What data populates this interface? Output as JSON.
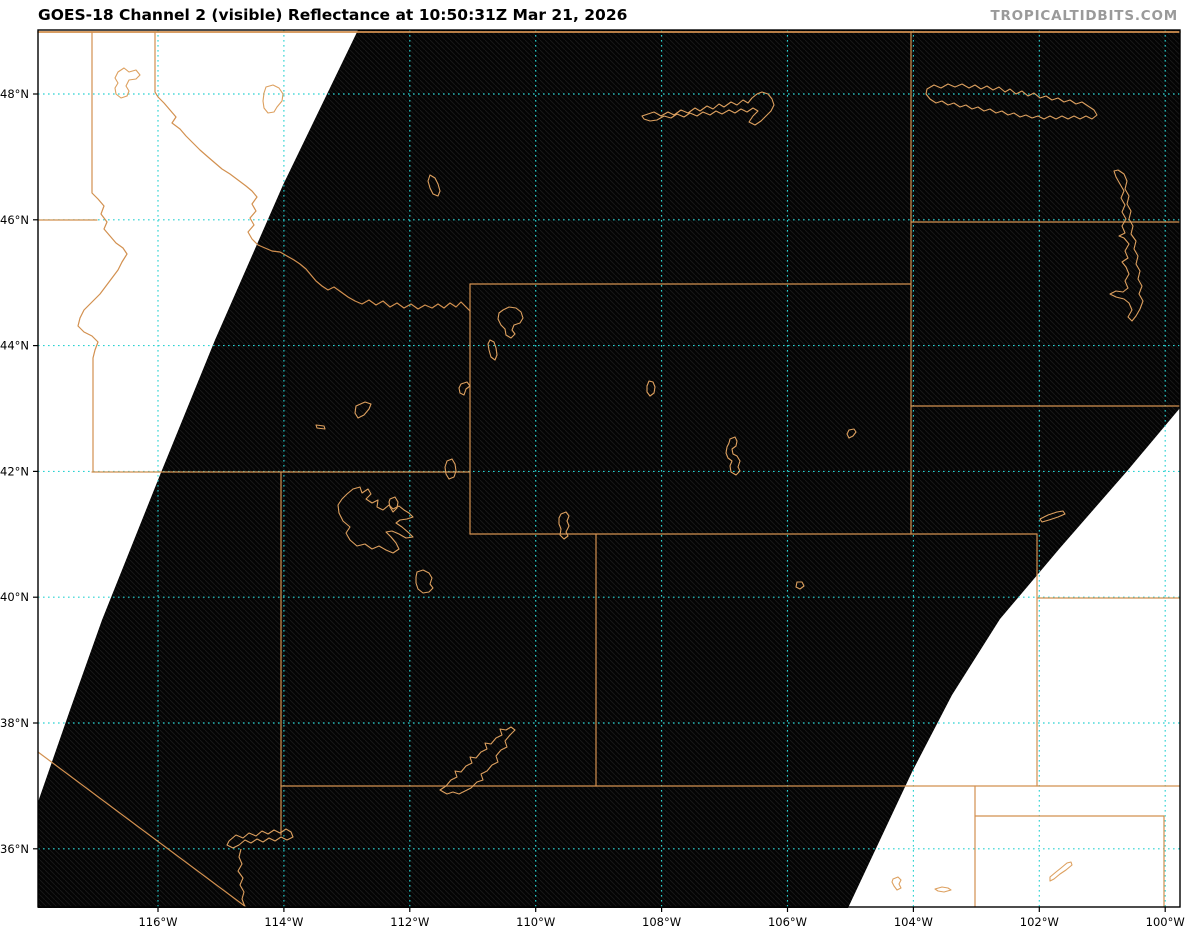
{
  "header": {
    "title": "GOES-18 Channel 2 (visible) Reflectance at 10:50:31Z Mar 21, 2026",
    "watermark": "TROPICALTIDBITS.COM"
  },
  "axes": {
    "x_ticks": [
      {
        "label": "116°W",
        "lon": 116
      },
      {
        "label": "114°W",
        "lon": 114
      },
      {
        "label": "112°W",
        "lon": 112
      },
      {
        "label": "110°W",
        "lon": 110
      },
      {
        "label": "108°W",
        "lon": 108
      },
      {
        "label": "106°W",
        "lon": 106
      },
      {
        "label": "104°W",
        "lon": 104
      },
      {
        "label": "102°W",
        "lon": 102
      },
      {
        "label": "100°W",
        "lon": 100
      }
    ],
    "y_ticks": [
      {
        "label": "48°N",
        "lat": 48
      },
      {
        "label": "46°N",
        "lat": 46
      },
      {
        "label": "44°N",
        "lat": 44
      },
      {
        "label": "42°N",
        "lat": 42
      },
      {
        "label": "40°N",
        "lat": 40
      },
      {
        "label": "38°N",
        "lat": 38
      },
      {
        "label": "36°N",
        "lat": 36
      }
    ]
  },
  "colors": {
    "background": "#ffffff",
    "swath_fill": "#040404",
    "swath_stripe": "#181818",
    "gridline": "#2ad2d2",
    "state_border": "#d2904f",
    "water_outline": "#dda05f",
    "frame": "#000000",
    "title_text": "#000000",
    "watermark_text": "#9a9a9a",
    "tick_label": "#000000"
  }
}
